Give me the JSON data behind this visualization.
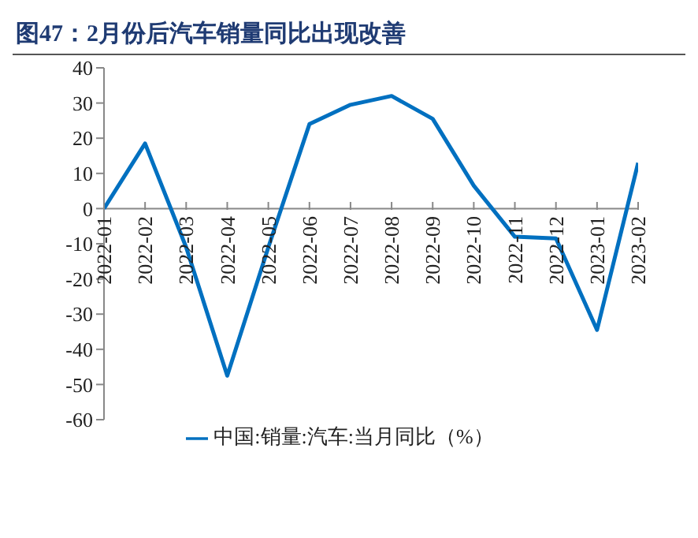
{
  "chart_data": {
    "type": "line",
    "title": "图47：2月份后汽车销量同比出现改善",
    "categories": [
      "2022-01",
      "2022-02",
      "2022-03",
      "2022-04",
      "2022-05",
      "2022-06",
      "2022-07",
      "2022-08",
      "2022-09",
      "2022-10",
      "2022-11",
      "2022-12",
      "2023-01",
      "2023-02"
    ],
    "series": [
      {
        "name": "中国:销量:汽车:当月同比（%）",
        "color": "#0070c0",
        "values": [
          0,
          18.5,
          -11,
          -47.5,
          -11,
          24,
          29.5,
          32,
          25.5,
          6.5,
          -8,
          -8.5,
          -34.5,
          13
        ]
      }
    ],
    "ylim": [
      -60,
      40
    ],
    "yticks": [
      -60,
      -50,
      -40,
      -30,
      -20,
      -10,
      0,
      10,
      20,
      30,
      40
    ],
    "legend": "bottom",
    "marker": "none",
    "line_style": "solid"
  }
}
